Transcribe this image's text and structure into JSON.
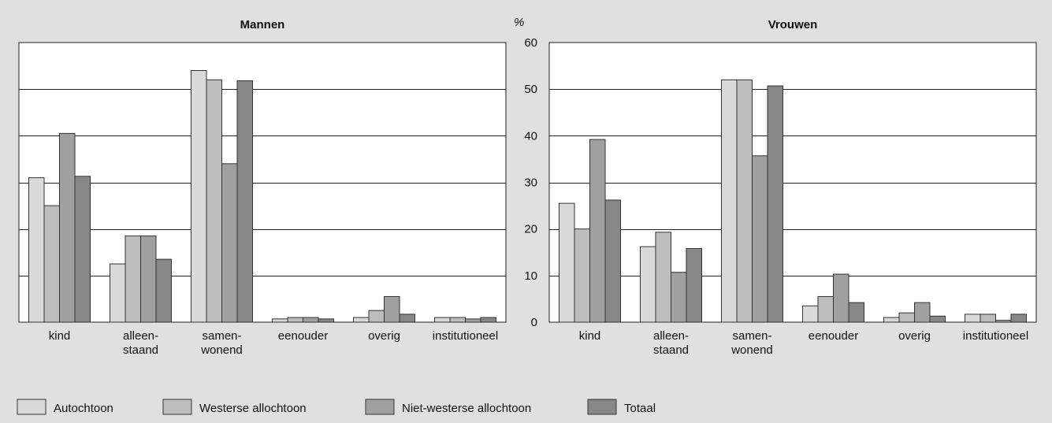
{
  "chart_data": [
    {
      "type": "bar",
      "title": "Mannen",
      "categories": [
        "kind",
        "alleen-\nstaand",
        "samen-\nwonend",
        "eenouder",
        "overig",
        "institutioneel"
      ],
      "series": [
        {
          "name": "Autochtoon",
          "values": [
            31,
            12.5,
            54,
            0.7,
            1,
            1
          ]
        },
        {
          "name": "Westerse allochtoon",
          "values": [
            25,
            18.5,
            52,
            1,
            2.5,
            1
          ]
        },
        {
          "name": "Niet-westerse allochtoon",
          "values": [
            40.5,
            18.5,
            34,
            1,
            5.5,
            0.7
          ]
        },
        {
          "name": "Totaal",
          "values": [
            31.3,
            13.5,
            51.8,
            0.7,
            1.7,
            1
          ]
        }
      ],
      "ylim": [
        0,
        60
      ],
      "grid": true
    },
    {
      "type": "bar",
      "title": "Vrouwen",
      "categories": [
        "kind",
        "alleen-\nstaand",
        "samen-\nwonend",
        "eenouder",
        "overig",
        "institutioneel"
      ],
      "series": [
        {
          "name": "Autochtoon",
          "values": [
            25.5,
            16.2,
            52,
            3.5,
            1,
            1.7
          ]
        },
        {
          "name": "Westerse allochtoon",
          "values": [
            20,
            19.3,
            52,
            5.5,
            2,
            1.7
          ]
        },
        {
          "name": "Niet-westerse allochtoon",
          "values": [
            39.2,
            10.7,
            35.7,
            10.3,
            4.2,
            0.4
          ]
        },
        {
          "name": "Totaal",
          "values": [
            26.2,
            15.8,
            50.7,
            4.2,
            1.3,
            1.7
          ]
        }
      ],
      "ylabel": "%",
      "yticks": [
        0,
        10,
        20,
        30,
        40,
        50,
        60
      ],
      "ylim": [
        0,
        60
      ],
      "grid": true
    }
  ],
  "legend": {
    "placement": "bottom-left",
    "items": [
      {
        "label": "Autochtoon",
        "color": "#d9d9d9"
      },
      {
        "label": "Westerse allochtoon",
        "color": "#bdbdbd"
      },
      {
        "label": "Niet-westerse allochtoon",
        "color": "#a0a0a0"
      },
      {
        "label": "Totaal",
        "color": "#878787"
      }
    ]
  },
  "colors": {
    "background": "#e0e0e0",
    "plot_area": "#ffffff",
    "bar_stroke": "#333333",
    "gridline": "#222222"
  }
}
